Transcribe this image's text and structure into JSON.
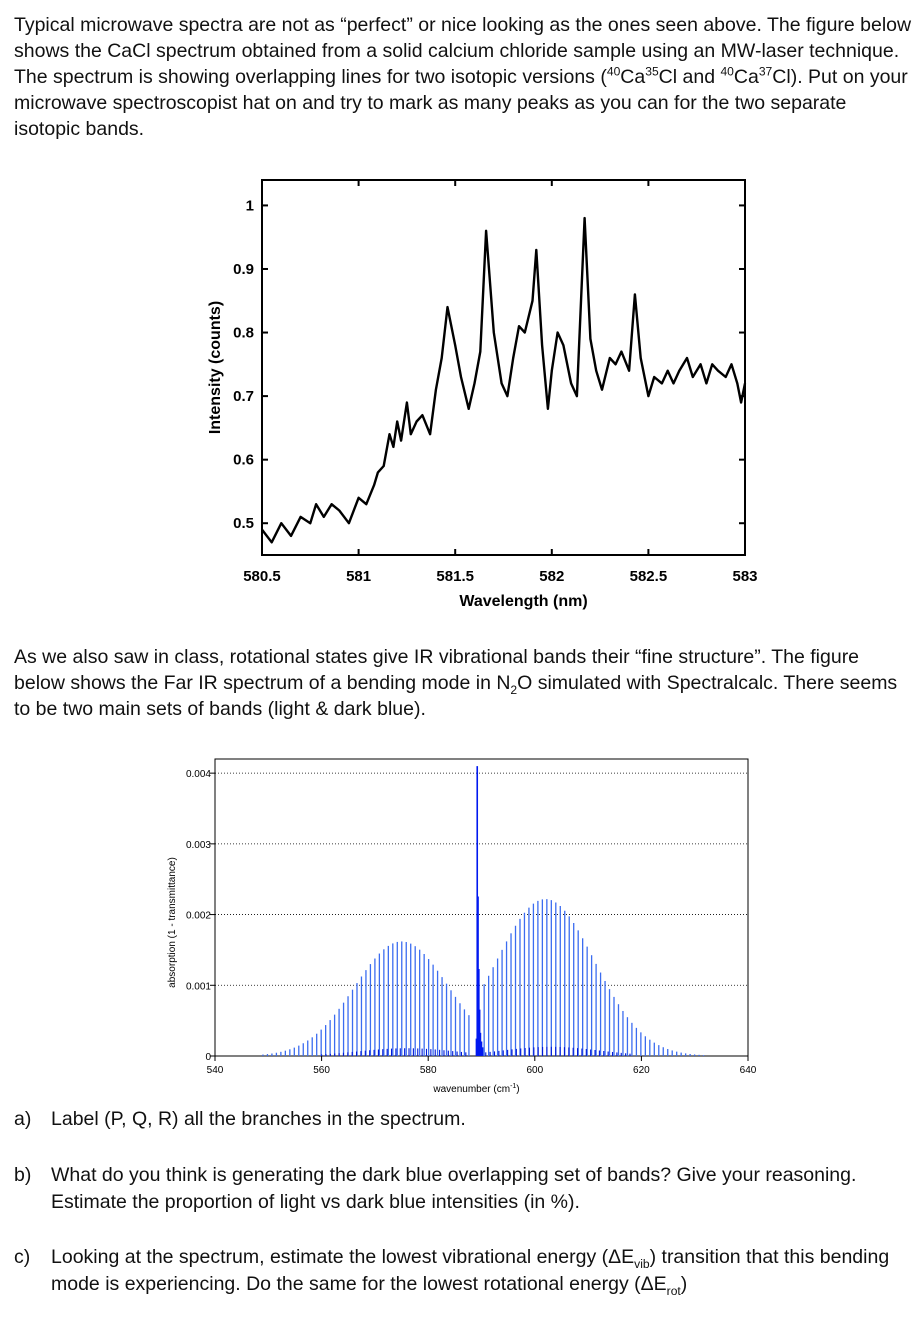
{
  "intro": {
    "p1_a": "Typical microwave spectra are not as “perfect” or nice looking as the ones seen above. The figure below shows the CaCl spectrum obtained from a solid calcium chloride sample using an MW-laser technique. The spectrum is showing overlapping lines for two isotopic versions (",
    "iso1_mass_ca": "40",
    "iso1_ca": "Ca",
    "iso1_mass_cl": "35",
    "iso1_cl": "Cl",
    "and": " and ",
    "iso2_mass_ca": "40",
    "iso2_ca": "Ca",
    "iso2_mass_cl": "37",
    "iso2_cl": "Cl",
    "p1_b": "). Put on your microwave spectroscopist hat on and try to mark as many peaks as you can for the two separate isotopic bands.",
    "p2_a": "As we also saw in class, rotational states give IR vibrational bands their “fine structure”. The figure below shows the Far IR spectrum of a bending mode in N",
    "p2_sub": "2",
    "p2_b": "O simulated with Spectralcalc. There seems to be two main sets of bands (light & dark blue)."
  },
  "chart_data": [
    {
      "type": "line",
      "xlabel": "Wavelength (nm)",
      "ylabel": "Intensity (counts)",
      "xlim": [
        580.5,
        583
      ],
      "ylim": [
        0.45,
        1.04
      ],
      "xticks": [
        "580.5",
        "581",
        "581.5",
        "582",
        "582.5",
        "583"
      ],
      "yticks": [
        "0.5",
        "0.6",
        "0.7",
        "0.8",
        "0.9",
        "1"
      ],
      "series": [
        {
          "color": "#000000",
          "x": [
            580.5,
            580.55,
            580.6,
            580.65,
            580.7,
            580.75,
            580.78,
            580.82,
            580.86,
            580.9,
            580.95,
            581.0,
            581.04,
            581.08,
            581.1,
            581.13,
            581.16,
            581.18,
            581.2,
            581.22,
            581.25,
            581.27,
            581.3,
            581.33,
            581.37,
            581.4,
            581.43,
            581.46,
            581.5,
            581.53,
            581.57,
            581.6,
            581.63,
            581.66,
            581.7,
            581.74,
            581.77,
            581.8,
            581.83,
            581.86,
            581.9,
            581.92,
            581.95,
            581.98,
            582.0,
            582.03,
            582.06,
            582.1,
            582.13,
            582.17,
            582.2,
            582.23,
            582.26,
            582.3,
            582.33,
            582.36,
            582.4,
            582.43,
            582.46,
            582.5,
            582.53,
            582.57,
            582.6,
            582.63,
            582.66,
            582.7,
            582.73,
            582.77,
            582.8,
            582.83,
            582.86,
            582.9,
            582.93,
            582.96,
            582.98,
            583.0
          ],
          "y": [
            0.49,
            0.47,
            0.5,
            0.48,
            0.51,
            0.5,
            0.53,
            0.51,
            0.53,
            0.52,
            0.5,
            0.54,
            0.53,
            0.56,
            0.58,
            0.59,
            0.64,
            0.62,
            0.66,
            0.63,
            0.69,
            0.64,
            0.66,
            0.67,
            0.64,
            0.71,
            0.76,
            0.84,
            0.78,
            0.73,
            0.68,
            0.72,
            0.77,
            0.96,
            0.8,
            0.72,
            0.7,
            0.76,
            0.81,
            0.8,
            0.85,
            0.93,
            0.78,
            0.68,
            0.74,
            0.8,
            0.78,
            0.72,
            0.7,
            0.98,
            0.79,
            0.74,
            0.71,
            0.76,
            0.75,
            0.77,
            0.74,
            0.86,
            0.76,
            0.7,
            0.73,
            0.72,
            0.74,
            0.72,
            0.74,
            0.76,
            0.73,
            0.75,
            0.72,
            0.75,
            0.74,
            0.73,
            0.75,
            0.72,
            0.69,
            0.72
          ]
        }
      ]
    },
    {
      "type": "bar",
      "xlabel_main": "wavenumber (cm",
      "xlabel_sup": "-1",
      "xlabel_close": ")",
      "ylabel": "absorption (1 - transmittance)",
      "xlim": [
        540,
        640
      ],
      "ylim": [
        0,
        0.0042
      ],
      "xticks": [
        540,
        560,
        580,
        600,
        620,
        640
      ],
      "yticks": [
        0,
        0.001,
        0.002,
        0.003,
        0.004
      ],
      "ytick_labels": [
        "0",
        "0.001",
        "0.002",
        "0.003",
        "0.004"
      ],
      "grid": true,
      "q_branch": {
        "x": 589.2,
        "value": 0.0041
      },
      "series": [
        {
          "name": "light",
          "color": "#3b6cf0",
          "p_branch": {
            "center": 575,
            "peak": 0.00162,
            "sigma": 8.8,
            "start": 549,
            "end": 588
          },
          "r_branch": {
            "center": 602,
            "peak": 0.00222,
            "sigma": 9.2,
            "start": 590.5,
            "end": 632
          },
          "spacing": 0.84
        },
        {
          "name": "dark",
          "color": "#0018d8",
          "p_branch": {
            "center": 576,
            "peak": 0.00011,
            "sigma": 9,
            "start": 560,
            "end": 587.8
          },
          "r_branch": {
            "center": 603,
            "peak": 0.00013,
            "sigma": 9,
            "start": 590.8,
            "end": 618
          },
          "spacing": 0.82
        }
      ]
    }
  ],
  "questions": [
    {
      "label": "a)",
      "text": "Label (P, Q, R) all the branches in the spectrum."
    },
    {
      "label": "b)",
      "text": "What do you think is generating the dark blue overlapping set of bands? Give your reasoning. Estimate the proportion of light vs dark blue intensities (in %)."
    },
    {
      "label": "c)",
      "text_a": "Looking at the spectrum, estimate the lowest vibrational energy (ΔE",
      "sub_a": "vib",
      "text_b": ") transition that this bending mode is experiencing. Do the same for the lowest rotational energy (ΔE",
      "sub_b": "rot",
      "text_c": ")"
    }
  ]
}
